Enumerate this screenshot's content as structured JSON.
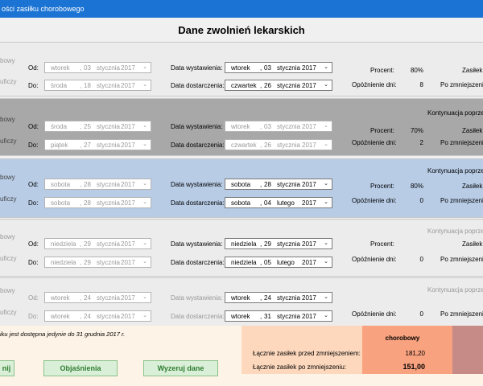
{
  "window": {
    "title": "ości zasiłku chorobowego"
  },
  "heading": "Dane zwolnień lekarskich",
  "labels": {
    "od": "Od:",
    "do": "Do:",
    "data_wystawienia": "Data wystawienia:",
    "data_dostarczenia": "Data dostarczenia:",
    "procent": "Procent:",
    "opoznienie": "Opóźnienie dni:",
    "zasilek": "Zasiłek:",
    "po_zmniejszeniu": "Po zmniejszeniu:",
    "kontynuacja": "Kontynuacja poprzedni",
    "side_top": "bowy",
    "side_bottom": "uficzy"
  },
  "panels": [
    {
      "od": {
        "day": "wtorek",
        "d": "03",
        "month": "stycznia",
        "year": "2017"
      },
      "do": {
        "day": "środa",
        "d": "18",
        "month": "stycznia",
        "year": "2017"
      },
      "wyst": {
        "day": "wtorek",
        "d": "03",
        "month": "stycznia",
        "year": "2017"
      },
      "dost": {
        "day": "czwartek",
        "d": "26",
        "month": "stycznia",
        "year": "2017"
      },
      "procent": "80%",
      "opoznienie": "8"
    },
    {
      "od": {
        "day": "środa",
        "d": "25",
        "month": "stycznia",
        "year": "2017"
      },
      "do": {
        "day": "piątek",
        "d": "27",
        "month": "stycznia",
        "year": "2017"
      },
      "wyst": {
        "day": "wtorek",
        "d": "03",
        "month": "stycznia",
        "year": "2017"
      },
      "dost": {
        "day": "czwartek",
        "d": "26",
        "month": "stycznia",
        "year": "2017"
      },
      "procent": "70%",
      "opoznienie": "2"
    },
    {
      "od": {
        "day": "sobota",
        "d": "28",
        "month": "stycznia",
        "year": "2017"
      },
      "do": {
        "day": "sobota",
        "d": "28",
        "month": "stycznia",
        "year": "2017"
      },
      "wyst": {
        "day": "sobota",
        "d": "28",
        "month": "stycznia",
        "year": "2017"
      },
      "dost": {
        "day": "sobota",
        "d": "04",
        "month": "lutego",
        "year": "2017"
      },
      "procent": "80%",
      "opoznienie": "0"
    },
    {
      "od": {
        "day": "niedziela",
        "d": "29",
        "month": "stycznia",
        "year": "2017"
      },
      "do": {
        "day": "niedziela",
        "d": "29",
        "month": "stycznia",
        "year": "2017"
      },
      "wyst": {
        "day": "niedziela",
        "d": "29",
        "month": "stycznia",
        "year": "2017"
      },
      "dost": {
        "day": "niedziela",
        "d": "05",
        "month": "lutego",
        "year": "2017"
      },
      "procent": "",
      "opoznienie": "0"
    },
    {
      "od": {
        "day": "wtorek",
        "d": "24",
        "month": "stycznia",
        "year": "2017"
      },
      "do": {
        "day": "wtorek",
        "d": "24",
        "month": "stycznia",
        "year": "2017"
      },
      "wyst": {
        "day": "wtorek",
        "d": "24",
        "month": "stycznia",
        "year": "2017"
      },
      "dost": {
        "day": "wtorek",
        "d": "31",
        "month": "stycznia",
        "year": "2017"
      },
      "procent": "",
      "opoznienie": "0"
    }
  ],
  "footer": {
    "note": "iku jest dostępna jedynie do 31 grudnia 2017 r.",
    "chorobowy": "chorobowy",
    "przed_label": "Łącznie zasiłek przed zmniejszeniem:",
    "przed_value": "181,20",
    "po_label": "Łącznie zasiłek po zmniejszeniu:",
    "po_value": "151,00"
  },
  "buttons": {
    "left": "nij",
    "objasnienia": "Objaśnienia",
    "wyzeruj": "Wyzeruj dane"
  }
}
